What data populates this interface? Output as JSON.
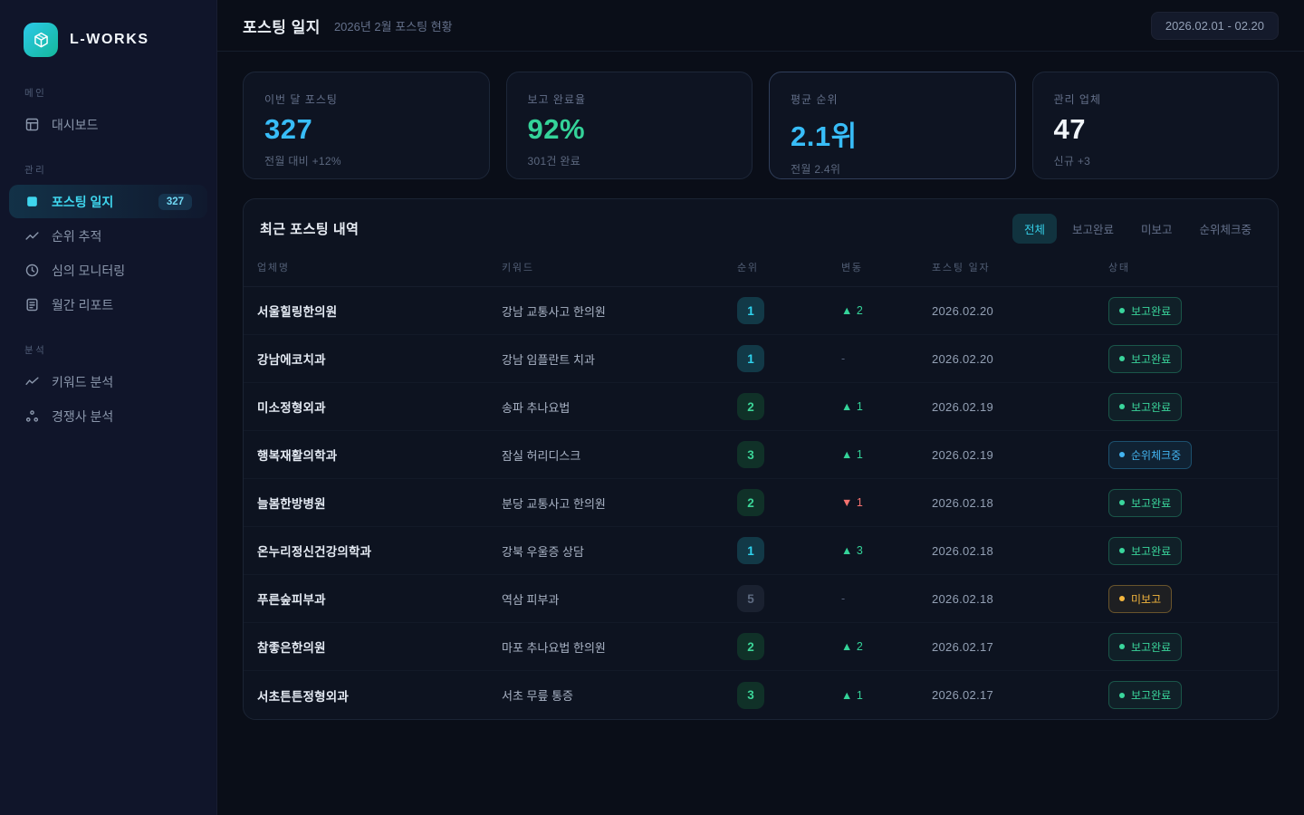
{
  "brand": {
    "name": "L-WORKS",
    "logo_icon": "cube-icon"
  },
  "sidebar": {
    "sections": [
      {
        "label": "메인",
        "items": [
          {
            "label": "대시보드",
            "icon": "dashboard-icon",
            "active": false
          }
        ]
      },
      {
        "label": "관리",
        "items": [
          {
            "label": "포스팅 일지",
            "icon": "posting-log-icon",
            "active": true,
            "badge": "327"
          },
          {
            "label": "순위 추적",
            "icon": "rank-tracking-icon",
            "active": false
          },
          {
            "label": "심의 모니터링",
            "icon": "monitoring-clock-icon",
            "active": false
          },
          {
            "label": "월간 리포트",
            "icon": "monthly-report-icon",
            "active": false
          }
        ]
      },
      {
        "label": "분석",
        "items": [
          {
            "label": "키워드 분석",
            "icon": "keyword-analysis-icon",
            "active": false
          },
          {
            "label": "경쟁사 분석",
            "icon": "competitor-analysis-icon",
            "active": false
          }
        ]
      }
    ]
  },
  "header": {
    "title": "포스팅 일지",
    "subtitle": "2026년 2월 포스팅 현황",
    "date_range": "2026.02.01 - 02.20"
  },
  "stats": [
    {
      "label": "이번 달 포스팅",
      "value": "327",
      "sub": "전월 대비 +12%",
      "color": "#38bdf8",
      "emphasized": false
    },
    {
      "label": "보고 완료율",
      "value": "92%",
      "sub": "301건 완료",
      "color": "#34d399",
      "emphasized": false
    },
    {
      "label": "평균 순위",
      "value": "2.1위",
      "sub": "전월 2.4위",
      "color": "#38bdf8",
      "emphasized": true
    },
    {
      "label": "관리 업체",
      "value": "47",
      "sub": "신규 +3",
      "color": "#f1f5f9",
      "emphasized": false
    }
  ],
  "table": {
    "title": "최근 포스팅 내역",
    "filters": [
      {
        "label": "전체",
        "active": true
      },
      {
        "label": "보고완료",
        "active": false
      },
      {
        "label": "미보고",
        "active": false
      },
      {
        "label": "순위체크중",
        "active": false
      }
    ],
    "columns": [
      "업체명",
      "키워드",
      "순위",
      "변동",
      "포스팅 일자",
      "상태"
    ],
    "rows": [
      {
        "company": "서울힐링한의원",
        "keyword": "강남 교통사고 한의원",
        "rank": "1",
        "rank_tier": "top",
        "change": "2",
        "change_dir": "up",
        "date": "2026.02.20",
        "status": "보고완료",
        "status_type": "done"
      },
      {
        "company": "강남에코치과",
        "keyword": "강남 임플란트 치과",
        "rank": "1",
        "rank_tier": "top",
        "change": "",
        "change_dir": "none",
        "date": "2026.02.20",
        "status": "보고완료",
        "status_type": "done"
      },
      {
        "company": "미소정형외과",
        "keyword": "송파 추나요법",
        "rank": "2",
        "rank_tier": "good",
        "change": "1",
        "change_dir": "up",
        "date": "2026.02.19",
        "status": "보고완료",
        "status_type": "done"
      },
      {
        "company": "행복재활의학과",
        "keyword": "잠실 허리디스크",
        "rank": "3",
        "rank_tier": "good",
        "change": "1",
        "change_dir": "up",
        "date": "2026.02.19",
        "status": "순위체크중",
        "status_type": "checking"
      },
      {
        "company": "늘봄한방병원",
        "keyword": "분당 교통사고 한의원",
        "rank": "2",
        "rank_tier": "good",
        "change": "1",
        "change_dir": "down",
        "date": "2026.02.18",
        "status": "보고완료",
        "status_type": "done"
      },
      {
        "company": "온누리정신건강의학과",
        "keyword": "강북 우울증 상담",
        "rank": "1",
        "rank_tier": "top",
        "change": "3",
        "change_dir": "up",
        "date": "2026.02.18",
        "status": "보고완료",
        "status_type": "done"
      },
      {
        "company": "푸른숲피부과",
        "keyword": "역삼 피부과",
        "rank": "5",
        "rank_tier": "low",
        "change": "",
        "change_dir": "none",
        "date": "2026.02.18",
        "status": "미보고",
        "status_type": "pending"
      },
      {
        "company": "참좋은한의원",
        "keyword": "마포 추나요법 한의원",
        "rank": "2",
        "rank_tier": "good",
        "change": "2",
        "change_dir": "up",
        "date": "2026.02.17",
        "status": "보고완료",
        "status_type": "done"
      },
      {
        "company": "서초튼튼정형외과",
        "keyword": "서초 무릎 통증",
        "rank": "3",
        "rank_tier": "good",
        "change": "1",
        "change_dir": "up",
        "date": "2026.02.17",
        "status": "보고완료",
        "status_type": "done"
      }
    ]
  },
  "glyphs": {
    "up_arrow": "▲",
    "down_arrow": "▼",
    "no_change": "-"
  },
  "colors": {
    "accent_cyan": "#22d3ee",
    "accent_sky": "#38bdf8",
    "accent_green": "#34d399",
    "accent_red": "#f4726f",
    "accent_amber": "#f5b73e",
    "bg_page": "#0a0e18",
    "bg_sidebar": "#10152a",
    "bg_card": "#0e1422",
    "bg_panel": "#0d1320"
  }
}
